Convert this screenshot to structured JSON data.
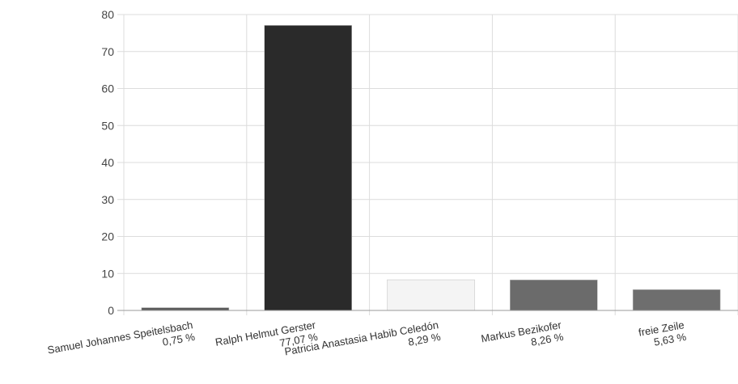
{
  "chart_data": {
    "type": "bar",
    "title": "",
    "xlabel": "",
    "ylabel": "",
    "ylim": [
      0,
      80
    ],
    "yticks": [
      0,
      10,
      20,
      30,
      40,
      50,
      60,
      70,
      80
    ],
    "grid": true,
    "categories": [
      {
        "name": "Samuel Johannes Speitelsbach",
        "pct": "0,75 %"
      },
      {
        "name": "Ralph Helmut Gerster",
        "pct": "77,07 %"
      },
      {
        "name": "Patricia Anastasia Habib Celedón",
        "pct": "8,29 %"
      },
      {
        "name": "Markus Bezikofer",
        "pct": "8,26 %"
      },
      {
        "name": "freie Zeile",
        "pct": "5,63 %"
      }
    ],
    "values": [
      0.75,
      77.07,
      8.29,
      8.26,
      5.63
    ],
    "colors": [
      "#5a5a5a",
      "#2a2a2a",
      "#f4f4f4",
      "#6b6b6b",
      "#6e6e6e"
    ]
  }
}
